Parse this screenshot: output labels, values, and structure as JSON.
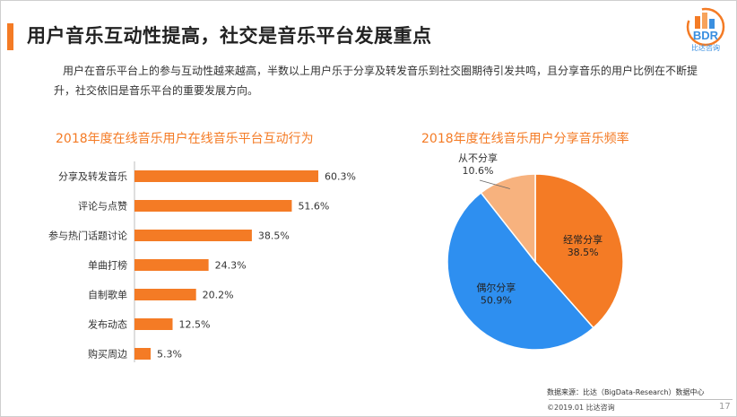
{
  "slide": {
    "title": "用户音乐互动性提高，社交是音乐平台发展重点",
    "intro": "用户在音乐平台上的参与互动性越来越高，半数以上用户乐于分享及转发音乐到社交圈期待引发共鸣，且分享音乐的用户比例在不断提升，社交依旧是音乐平台的重要发展方向。",
    "logo_text": "BDR",
    "logo_sub": "比达咨询",
    "accent_color": "#f47b25",
    "source": "数据来源：比达（BigData-Research）数据中心",
    "copyright": "©2019.01 比达咨询",
    "page_number": "17"
  },
  "chart_data": [
    {
      "type": "bar",
      "orientation": "horizontal",
      "title": "2018年度在线音乐用户在线音乐平台互动行为",
      "categories": [
        "分享及转发音乐",
        "评论与点赞",
        "参与热门话题讨论",
        "单曲打榜",
        "自制歌单",
        "发布动态",
        "购买周边"
      ],
      "values": [
        60.3,
        51.6,
        38.5,
        24.3,
        20.2,
        12.5,
        5.3
      ],
      "value_labels": [
        "60.3%",
        "51.6%",
        "38.5%",
        "24.3%",
        "20.2%",
        "12.5%",
        "5.3%"
      ],
      "unit": "%",
      "color": "#f47b25",
      "grid": false
    },
    {
      "type": "pie",
      "title": "2018年度在线音乐用户分享音乐频率",
      "slices": [
        {
          "label": "经常分享",
          "value": 38.5,
          "value_label": "38.5%",
          "color": "#f47b25"
        },
        {
          "label": "偶尔分享",
          "value": 50.9,
          "value_label": "50.9%",
          "color": "#2e8ff0"
        },
        {
          "label": "从不分享",
          "value": 10.6,
          "value_label": "10.6%",
          "color": "#f7b27e"
        }
      ]
    }
  ]
}
